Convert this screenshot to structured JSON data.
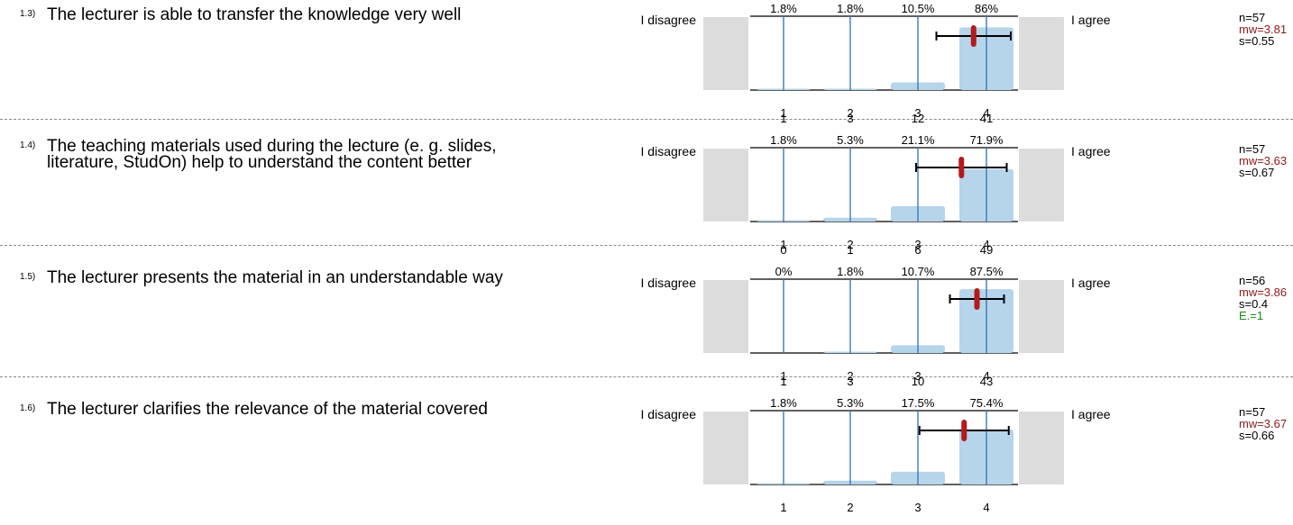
{
  "colors": {
    "bar": "#b6d4ea",
    "gridline": "#3a7ab8",
    "mean_marker": "#b31a1a",
    "side_box": "#dcdcdc",
    "mw_text": "#8b1a1a",
    "abstention_text": "#1a8a1a"
  },
  "questions": [
    {
      "number": "1.3)",
      "text": "The lecturer is able to transfer the knowledge very well",
      "left_label": "I disagree",
      "right_label": "I agree",
      "n": "n=57",
      "mw": "mw=3.81",
      "s": "s=0.55",
      "e": "",
      "counts": [
        "",
        "",
        "",
        ""
      ],
      "percents": [
        "1.8%",
        "1.8%",
        "10.5%",
        "86%"
      ]
    },
    {
      "number": "1.4)",
      "text": "The teaching materials used during the lecture (e. g. slides, literature, StudOn) help to understand the content better",
      "left_label": "I disagree",
      "right_label": "I agree",
      "n": "n=57",
      "mw": "mw=3.63",
      "s": "s=0.67",
      "e": "",
      "counts": [
        "1",
        "3",
        "12",
        "41"
      ],
      "percents": [
        "1.8%",
        "5.3%",
        "21.1%",
        "71.9%"
      ]
    },
    {
      "number": "1.5)",
      "text": "The lecturer presents the material in an understandable way",
      "left_label": "I disagree",
      "right_label": "I agree",
      "n": "n=56",
      "mw": "mw=3.86",
      "s": "s=0.4",
      "e": "E.=1",
      "counts": [
        "0",
        "1",
        "6",
        "49"
      ],
      "percents": [
        "0%",
        "1.8%",
        "10.7%",
        "87.5%"
      ]
    },
    {
      "number": "1.6)",
      "text": "The lecturer clarifies the relevance of the material covered",
      "left_label": "I disagree",
      "right_label": "I agree",
      "n": "n=57",
      "mw": "mw=3.67",
      "s": "s=0.66",
      "e": "",
      "counts": [
        "1",
        "3",
        "10",
        "43"
      ],
      "percents": [
        "1.8%",
        "5.3%",
        "17.5%",
        "75.4%"
      ]
    }
  ],
  "chart_data": [
    {
      "type": "bar",
      "categories": [
        "1",
        "2",
        "3",
        "4"
      ],
      "values": [
        1.8,
        1.8,
        10.5,
        86
      ],
      "mean": 3.81,
      "sd": 0.55,
      "ylim": [
        0,
        100
      ]
    },
    {
      "type": "bar",
      "categories": [
        "1",
        "2",
        "3",
        "4"
      ],
      "values": [
        1.8,
        5.3,
        21.1,
        71.9
      ],
      "mean": 3.63,
      "sd": 0.67,
      "ylim": [
        0,
        100
      ]
    },
    {
      "type": "bar",
      "categories": [
        "1",
        "2",
        "3",
        "4"
      ],
      "values": [
        0,
        1.8,
        10.7,
        87.5
      ],
      "mean": 3.86,
      "sd": 0.4,
      "ylim": [
        0,
        100
      ]
    },
    {
      "type": "bar",
      "categories": [
        "1",
        "2",
        "3",
        "4"
      ],
      "values": [
        1.8,
        5.3,
        17.5,
        75.4
      ],
      "mean": 3.67,
      "sd": 0.66,
      "ylim": [
        0,
        100
      ]
    }
  ]
}
